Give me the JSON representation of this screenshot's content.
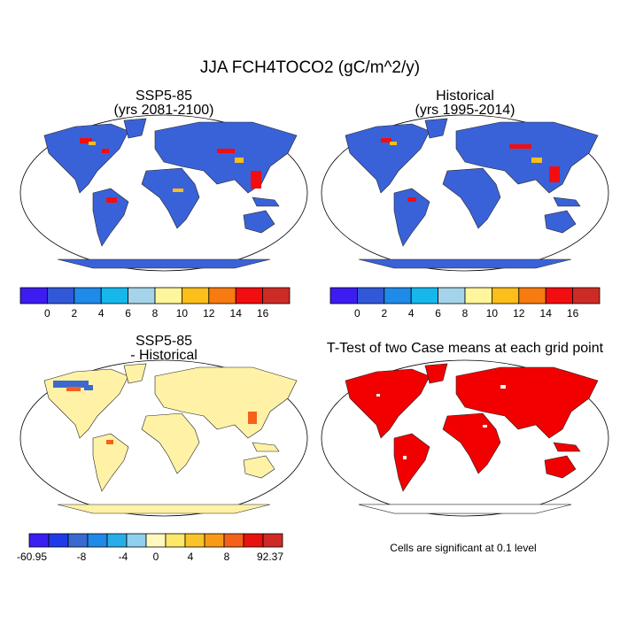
{
  "title": "JJA FCH4TOCO2 (gC/m^2/y)",
  "panels": [
    {
      "title": "SSP5-85",
      "subtitle": "(yrs 2081-2100)",
      "colorbar": {
        "colors": [
          "#3c1cf0",
          "#3158d8",
          "#1f8ae8",
          "#16b8ec",
          "#a5d4ea",
          "#fff59c",
          "#fbbe1a",
          "#f77b10",
          "#f10d10",
          "#cd2b26"
        ],
        "labels": [
          0,
          2,
          4,
          6,
          8,
          10,
          12,
          14,
          16
        ]
      }
    },
    {
      "title": "Historical",
      "subtitle": "(yrs 1995-2014)",
      "colorbar": {
        "colors": [
          "#3c1cf0",
          "#3158d8",
          "#1f8ae8",
          "#16b8ec",
          "#a5d4ea",
          "#fff59c",
          "#fbbe1a",
          "#f77b10",
          "#f10d10",
          "#cd2b26"
        ],
        "labels": [
          0,
          2,
          4,
          6,
          8,
          10,
          12,
          14,
          16
        ]
      }
    },
    {
      "title": "SSP5-85",
      "subtitle": "- Historical",
      "colorbar": {
        "colors": [
          "#3a1ef2",
          "#1f3be8",
          "#3a6ad0",
          "#1f8ae8",
          "#27aee8",
          "#8fd0ee",
          "#fff9c0",
          "#fde86a",
          "#fbc32a",
          "#f89a18",
          "#f5601a",
          "#e8130e",
          "#cf2a26"
        ],
        "labels": [
          -60.95,
          -8,
          -4,
          0,
          4,
          8,
          92.37
        ]
      }
    },
    {
      "title": "T-Test of two Case means at each grid point",
      "note": "Cells are significant at 0.1 level"
    }
  ]
}
